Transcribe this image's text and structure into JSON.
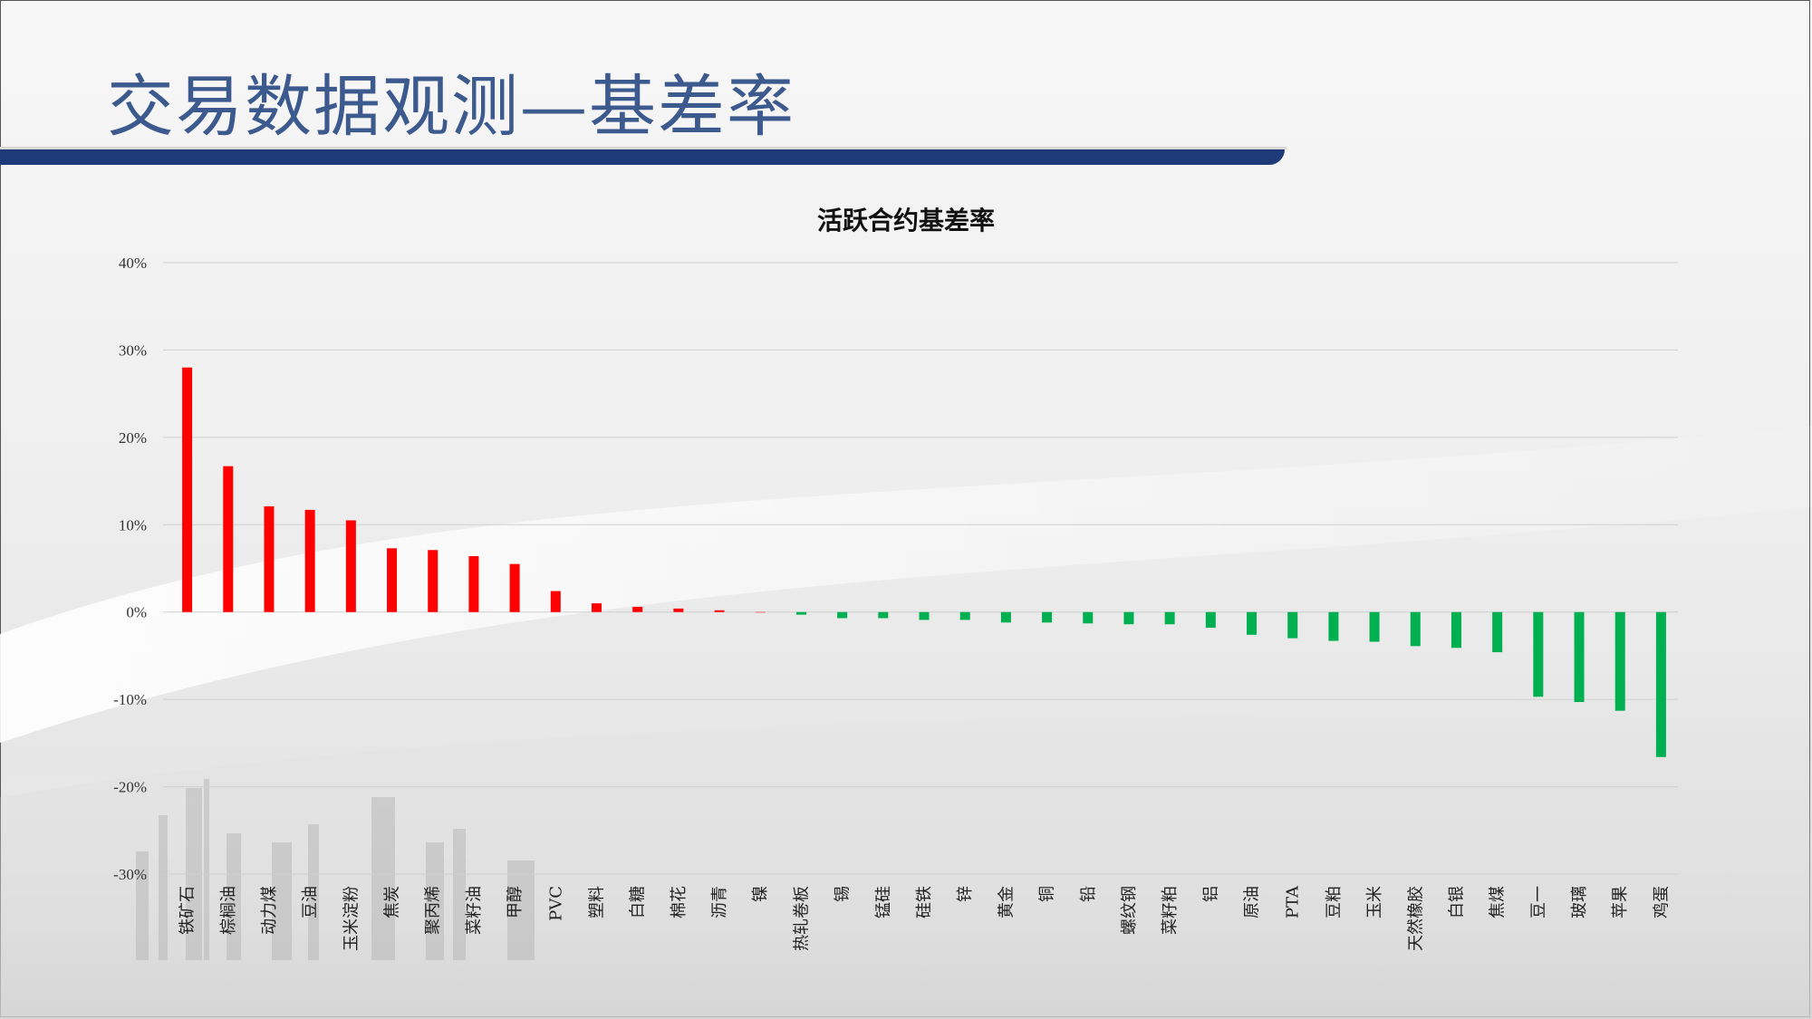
{
  "header": {
    "title": "交易数据观测—基差率"
  },
  "chart_data": {
    "type": "bar",
    "title": "活跃合约基差率",
    "xlabel": "",
    "ylabel": "",
    "ylim": [
      -30,
      40
    ],
    "ytick_values": [
      40,
      30,
      20,
      10,
      0,
      -10,
      -20,
      -30
    ],
    "ytick_labels": [
      "40%",
      "30%",
      "20%",
      "10%",
      "0%",
      "-10%",
      "-20%",
      "-30%"
    ],
    "grid": true,
    "legend": "none",
    "colors": {
      "positive": "#ff0000",
      "negative": "#00b050"
    },
    "categories": [
      "铁矿石",
      "棕榈油",
      "动力煤",
      "豆油",
      "玉米淀粉",
      "焦炭",
      "聚丙烯",
      "菜籽油",
      "甲醇",
      "PVC",
      "塑料",
      "白糖",
      "棉花",
      "沥青",
      "镍",
      "热轧卷板",
      "锡",
      "锰硅",
      "硅铁",
      "锌",
      "黄金",
      "铜",
      "铅",
      "螺纹钢",
      "菜籽粕",
      "铝",
      "原油",
      "PTA",
      "豆粕",
      "玉米",
      "天然橡胶",
      "白银",
      "焦煤",
      "豆一",
      "玻璃",
      "苹果",
      "鸡蛋"
    ],
    "values": [
      28.0,
      16.7,
      12.1,
      11.7,
      10.5,
      7.3,
      7.1,
      6.4,
      5.5,
      2.4,
      1.0,
      0.6,
      0.4,
      0.2,
      0.0,
      -0.3,
      -0.7,
      -0.7,
      -0.9,
      -0.9,
      -1.2,
      -1.2,
      -1.3,
      -1.4,
      -1.4,
      -1.8,
      -2.6,
      -3.0,
      -3.3,
      -3.4,
      -3.9,
      -4.1,
      -4.6,
      -9.7,
      -10.3,
      -11.3,
      -16.6
    ]
  }
}
